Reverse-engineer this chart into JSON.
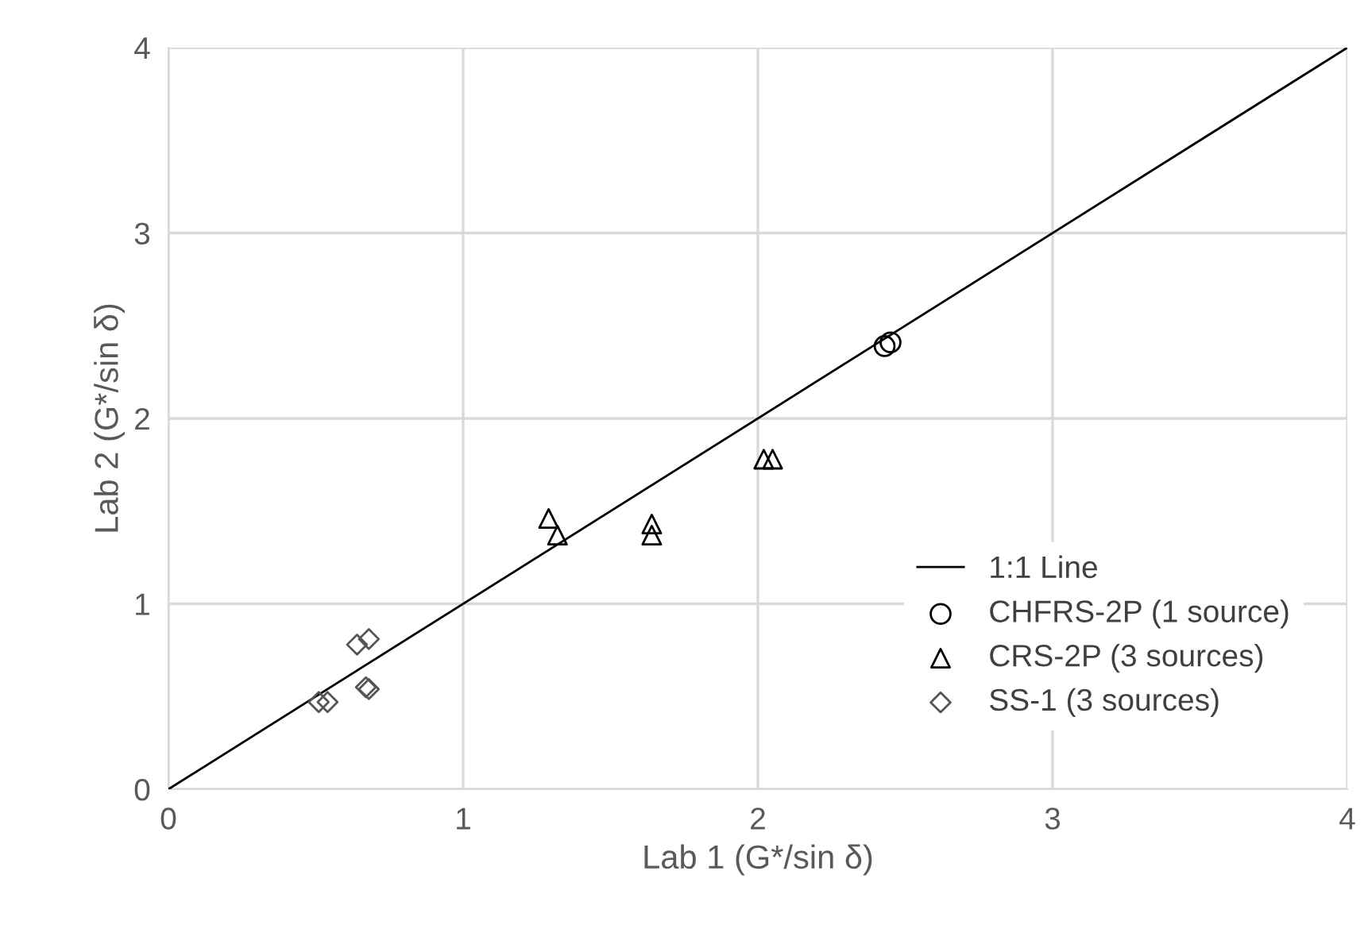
{
  "chart_data": {
    "type": "scatter",
    "xlabel": "Lab 1 (G*/sin δ)",
    "ylabel": "Lab 2 (G*/sin δ)",
    "xlim": [
      0,
      4
    ],
    "ylim": [
      0,
      4
    ],
    "xticks": [
      0,
      1,
      2,
      3,
      4
    ],
    "yticks": [
      0,
      1,
      2,
      3,
      4
    ],
    "grid": true,
    "legend": "bottom right",
    "series": [
      {
        "name": "1:1 Line",
        "type": "line",
        "color": "#000000",
        "marker": "none",
        "line_style": "solid",
        "x": [
          0,
          4
        ],
        "values": [
          0,
          4
        ]
      },
      {
        "name": "CHFRS-2P (1 source)",
        "color": "#000000",
        "marker": "circle",
        "x": [
          2.43,
          2.45
        ],
        "values": [
          2.39,
          2.41
        ]
      },
      {
        "name": "CRS-2P (3 sources)",
        "color": "#000000",
        "marker": "triangle",
        "x": [
          1.29,
          1.32,
          1.64,
          1.64,
          2.02,
          2.05
        ],
        "values": [
          1.46,
          1.37,
          1.43,
          1.37,
          1.78,
          1.78
        ]
      },
      {
        "name": "SS-1 (3 sources)",
        "color": "#555555",
        "marker": "diamond",
        "x": [
          0.64,
          0.68,
          0.67,
          0.68,
          0.51,
          0.54
        ],
        "values": [
          0.78,
          0.81,
          0.55,
          0.54,
          0.47,
          0.47
        ]
      }
    ]
  }
}
